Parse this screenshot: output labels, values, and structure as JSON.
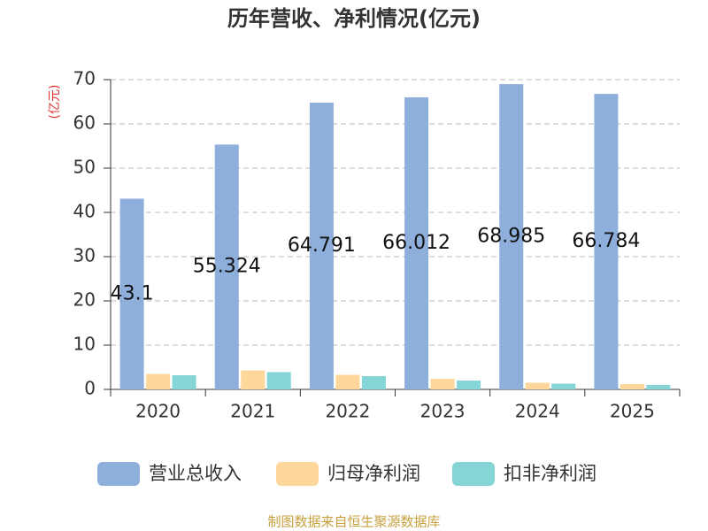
{
  "chart_data": {
    "type": "bar",
    "title": "历年营收、净利情况(亿元)",
    "y_label": "(亿元)",
    "categories": [
      "2020",
      "2021",
      "2022",
      "2023",
      "2024",
      "2025"
    ],
    "series": [
      {
        "name": "营业总收入",
        "color": "#8eaedb",
        "values": [
          43.1,
          55.324,
          64.791,
          66.012,
          68.985,
          66.784
        ],
        "show_labels": true
      },
      {
        "name": "归母净利润",
        "color": "#fdd89a",
        "values": [
          3.5,
          4.3,
          3.3,
          2.4,
          1.5,
          1.2
        ]
      },
      {
        "name": "扣非净利润",
        "color": "#86d5d6",
        "values": [
          3.2,
          3.9,
          3.0,
          2.0,
          1.3,
          1.0
        ]
      }
    ],
    "ylim": [
      0,
      70
    ],
    "yticks": [
      0,
      10,
      20,
      30,
      40,
      50,
      60,
      70
    ],
    "grid": true,
    "source": "制图数据来自恒生聚源数据库"
  }
}
